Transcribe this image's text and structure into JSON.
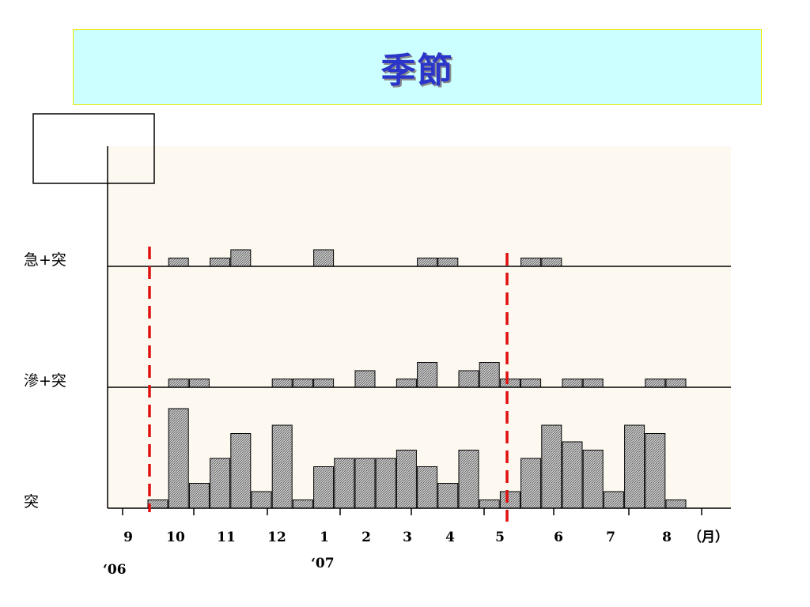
{
  "title": "季節",
  "chart_data": {
    "type": "bar",
    "colors": {
      "plot_bg": "#fdf9f1",
      "bar_fill": "#d0d0d0",
      "bar_stroke": "#000000",
      "marker": "#e01010"
    },
    "month_labels": [
      "9",
      "10",
      "11",
      "12",
      "1",
      "2",
      "3",
      "4",
      "5",
      "6",
      "7",
      "8"
    ],
    "month_unit": "（月）",
    "year_labels": [
      "‘06",
      "‘07"
    ],
    "panels": [
      {
        "label": "急+突",
        "values": [
          0,
          1,
          0,
          1,
          2,
          0,
          0,
          0,
          2,
          0,
          0,
          0,
          0,
          1,
          1,
          0,
          0,
          0,
          1,
          1,
          0,
          0,
          0,
          0,
          0,
          0,
          0,
          0,
          0,
          0
        ]
      },
      {
        "label": "滲+突",
        "values": [
          0,
          1,
          1,
          0,
          0,
          0,
          1,
          1,
          1,
          0,
          2,
          0,
          1,
          3,
          0,
          2,
          3,
          1,
          1,
          0,
          1,
          1,
          0,
          0,
          1,
          1,
          0,
          0,
          0,
          0
        ]
      },
      {
        "label": "突",
        "values": [
          1,
          12,
          3,
          6,
          9,
          2,
          10,
          1,
          5,
          6,
          6,
          6,
          7,
          5,
          3,
          7,
          1,
          2,
          6,
          10,
          8,
          7,
          2,
          10,
          9,
          1,
          0,
          0,
          0,
          0
        ]
      }
    ],
    "panel_max": [
      4,
      4,
      12
    ],
    "legend_box": "empty-top-left",
    "markers": [
      "between 9 and 10 (2006)",
      "at 5 (2007)"
    ]
  }
}
